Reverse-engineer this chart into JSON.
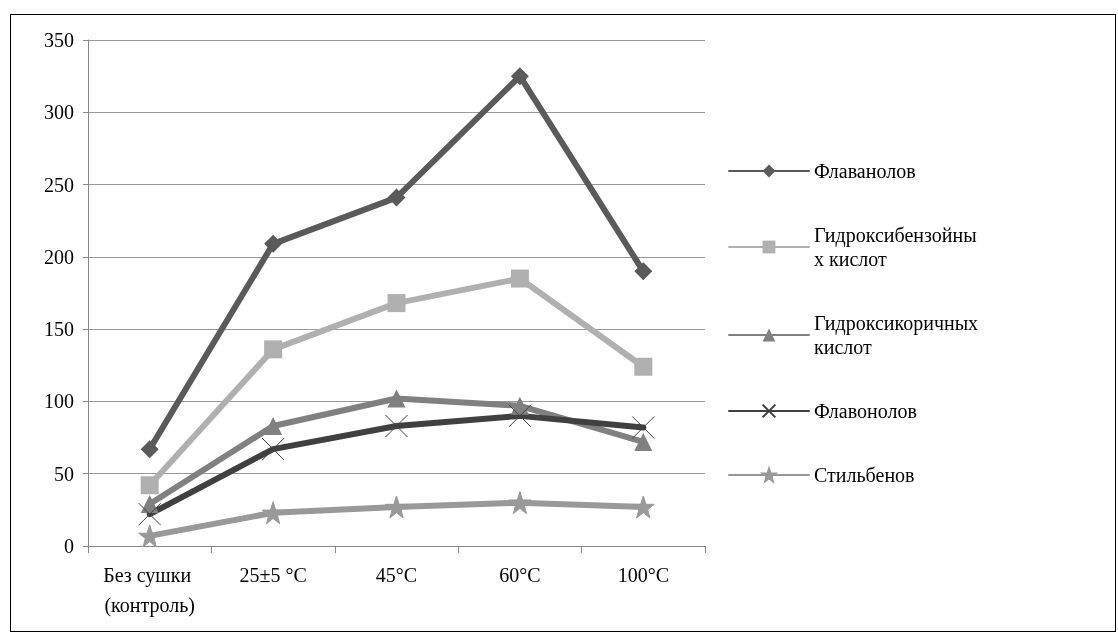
{
  "chart_data": {
    "type": "line",
    "categories": [
      "Без сушки (контроль)",
      "25±5 °C",
      "45°C",
      "60°C",
      "100°C"
    ],
    "series": [
      {
        "name": "Флаванолов",
        "color": "#5a5a5a",
        "marker": "diamond",
        "values": [
          67,
          209,
          241,
          325,
          190
        ]
      },
      {
        "name": "Гидроксибензойных кислот",
        "color": "#b0b0b0",
        "marker": "square",
        "values": [
          42,
          136,
          168,
          185,
          124
        ]
      },
      {
        "name": "Гидроксикоричных кислот",
        "color": "#808080",
        "marker": "triangle",
        "values": [
          29,
          83,
          102,
          97,
          72
        ]
      },
      {
        "name": "Флавонолов",
        "color": "#404040",
        "marker": "cross",
        "values": [
          22,
          67,
          83,
          90,
          82
        ]
      },
      {
        "name": "Стильбенов",
        "color": "#999999",
        "marker": "star",
        "values": [
          7,
          23,
          27,
          30,
          27
        ]
      }
    ],
    "ylim": [
      0,
      350
    ],
    "yticks": [
      0,
      50,
      100,
      150,
      200,
      250,
      300,
      350
    ],
    "grid": "y",
    "legend": "right",
    "line_style": "solid"
  }
}
